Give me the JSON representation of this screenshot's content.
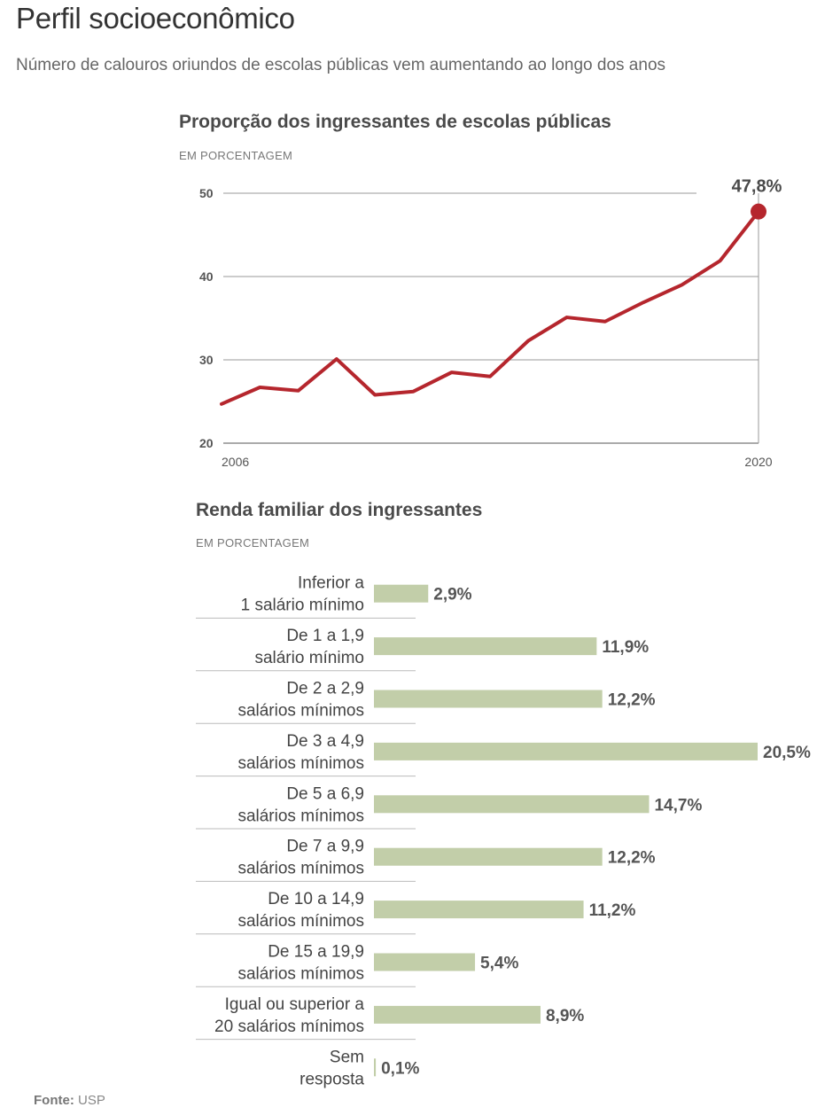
{
  "header": {
    "title": "Perfil socioeconômico",
    "subtitle": "Número de calouros oriundos de escolas públicas vem aumentando ao longo dos anos"
  },
  "source": {
    "label": "Fonte:",
    "value": "USP"
  },
  "colors": {
    "line": "#b5262d",
    "bar": "#c2cea9",
    "grid": "#999999",
    "text": "#4a4a4a"
  },
  "chart_data": [
    {
      "type": "line",
      "title": "Proporção dos ingressantes de escolas públicas",
      "unit_label": "EM PORCENTAGEM",
      "x": [
        2006,
        2007,
        2008,
        2009,
        2010,
        2011,
        2012,
        2013,
        2014,
        2015,
        2016,
        2017,
        2018,
        2019,
        2020
      ],
      "x_tick_labels": [
        "2006",
        "2020"
      ],
      "series": [
        {
          "values": [
            24.7,
            26.7,
            26.3,
            30.1,
            25.8,
            26.2,
            28.5,
            28.0,
            32.3,
            35.1,
            34.6,
            36.9,
            39.0,
            41.9,
            47.8
          ]
        }
      ],
      "ylim": [
        20,
        50
      ],
      "y_ticks": [
        20,
        30,
        40,
        50
      ],
      "highlight": {
        "label": "47,8%",
        "value": 47.8,
        "x": 2020
      },
      "grid": true
    },
    {
      "type": "bar",
      "orientation": "horizontal",
      "title": "Renda familiar dos ingressantes",
      "unit_label": "EM PORCENTAGEM",
      "categories": [
        [
          "Inferior a",
          "1 salário mínimo"
        ],
        [
          "De 1 a 1,9",
          "salário mínimo"
        ],
        [
          "De 2 a 2,9",
          "salários mínimos"
        ],
        [
          "De 3 a 4,9",
          "salários mínimos"
        ],
        [
          "De 5 a 6,9",
          "salários mínimos"
        ],
        [
          "De 7 a 9,9",
          "salários mínimos"
        ],
        [
          "De 10 a 14,9",
          "salários mínimos"
        ],
        [
          "De 15 a 19,9",
          "salários mínimos"
        ],
        [
          "Igual ou superior a",
          "20 salários mínimos"
        ],
        [
          "Sem",
          "resposta"
        ]
      ],
      "values": [
        2.9,
        11.9,
        12.2,
        20.5,
        14.7,
        12.2,
        11.2,
        5.4,
        8.9,
        0.1
      ],
      "value_labels": [
        "2,9%",
        "11,9%",
        "12,2%",
        "20,5%",
        "14,7%",
        "12,2%",
        "11,2%",
        "5,4%",
        "8,9%",
        "0,1%"
      ]
    }
  ]
}
